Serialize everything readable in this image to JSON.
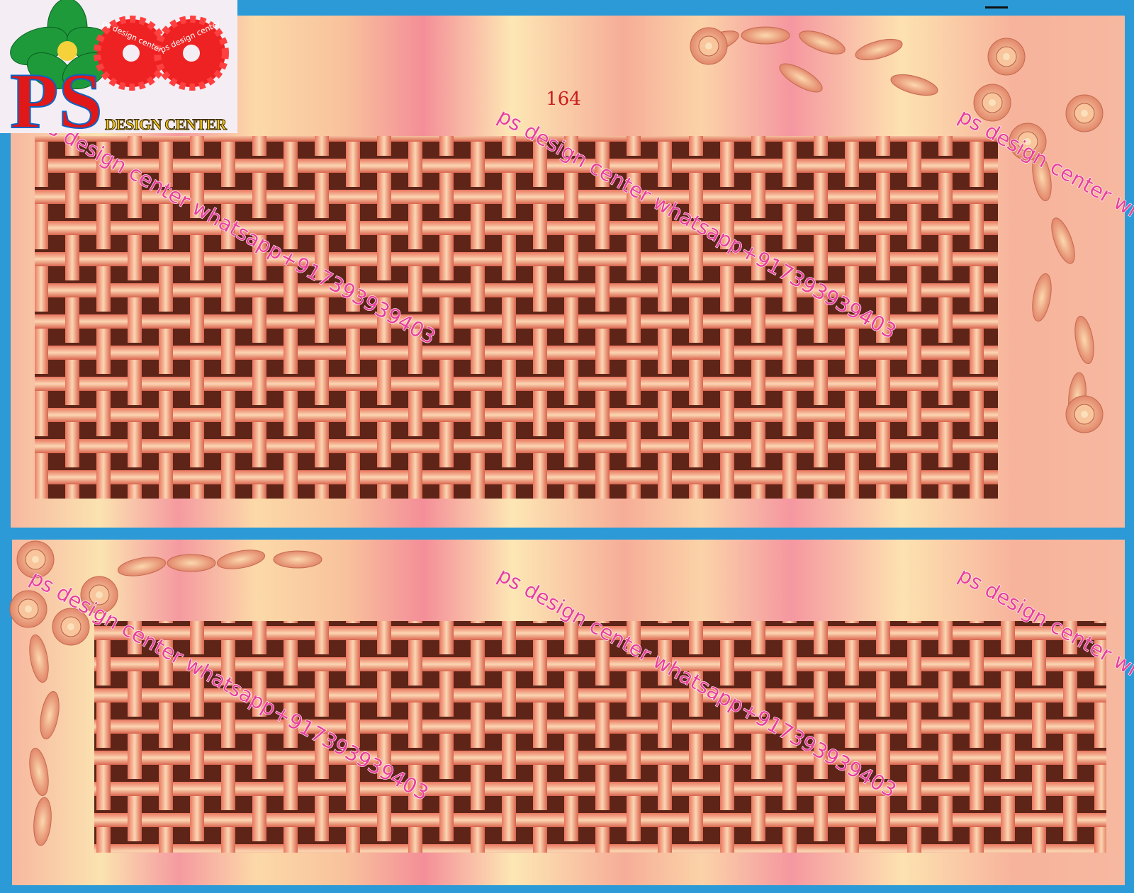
{
  "design_number": "164",
  "logo": {
    "initials": "PS",
    "gear_text": "ps design center",
    "name": "DESIGN CENTER"
  },
  "watermark": "ps design center whatsapp+917393939403"
}
